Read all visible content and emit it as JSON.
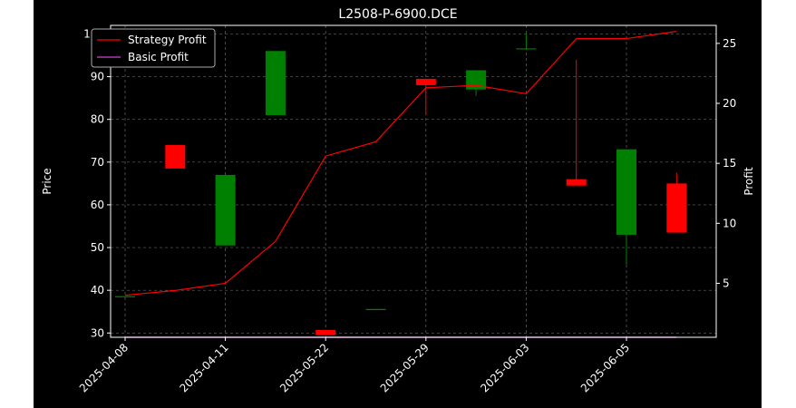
{
  "chart_data": {
    "type": "candlestick",
    "title": "L2508-P-6900.DCE",
    "ylabel_left": "Price",
    "ylabel_right": "Profit",
    "xlabel": "",
    "ylim_left": [
      29,
      102
    ],
    "ylim_right": [
      0.5,
      26.5
    ],
    "yticks_left": [
      30,
      40,
      50,
      60,
      70,
      80,
      90,
      100
    ],
    "yticks_right": [
      5,
      10,
      15,
      20,
      25
    ],
    "grid": true,
    "legend_position": "top-left",
    "categories": [
      "2025-04-08",
      "",
      "2025-04-11",
      "",
      "2025-05-22",
      "",
      "2025-05-29",
      "",
      "2025-06-03",
      "",
      "2025-06-05",
      ""
    ],
    "xtick_labels": [
      "2025-04-08",
      "2025-04-11",
      "2025-05-22",
      "2025-05-29",
      "2025-06-03",
      "2025-06-05"
    ],
    "candles": [
      {
        "open": 38.5,
        "high": 38.5,
        "low": 38.5,
        "close": 38.5
      },
      {
        "open": 74.0,
        "high": 74.0,
        "low": 68.5,
        "close": 68.5
      },
      {
        "open": 50.5,
        "high": 67.0,
        "low": 50.5,
        "close": 67.0
      },
      {
        "open": 81.0,
        "high": 96.0,
        "low": 81.0,
        "close": 96.0
      },
      {
        "open": 30.7,
        "high": 30.7,
        "low": 29.5,
        "close": 29.5
      },
      {
        "open": 35.5,
        "high": 35.5,
        "low": 35.5,
        "close": 35.5
      },
      {
        "open": 89.5,
        "high": 89.5,
        "low": 81.0,
        "close": 88.0
      },
      {
        "open": 87.0,
        "high": 91.5,
        "low": 85.5,
        "close": 91.5
      },
      {
        "open": 96.5,
        "high": 100.5,
        "low": 96.5,
        "close": 96.5
      },
      {
        "open": 66.0,
        "high": 94.0,
        "low": 64.5,
        "close": 64.5
      },
      {
        "open": 53.0,
        "high": 73.0,
        "low": 46.0,
        "close": 73.0
      },
      {
        "open": 65.0,
        "high": 67.5,
        "low": 53.5,
        "close": 53.5
      }
    ],
    "series": [
      {
        "name": "Strategy Profit",
        "axis": "right",
        "color": "#ff0000",
        "values": [
          4.0,
          4.4,
          5.0,
          8.5,
          15.6,
          16.8,
          21.3,
          21.5,
          20.8,
          25.4,
          25.4,
          26.0
        ]
      },
      {
        "name": "Basic Profit",
        "axis": "right",
        "color": "#cc44cc",
        "values": [
          0.5,
          0.5,
          0.5,
          0.5,
          0.5,
          0.5,
          0.5,
          0.5,
          0.5,
          0.5,
          0.5,
          0.5
        ]
      }
    ],
    "colors": {
      "up": "#008000",
      "down": "#ff0000",
      "background": "#000000",
      "grid": "#666666"
    }
  }
}
